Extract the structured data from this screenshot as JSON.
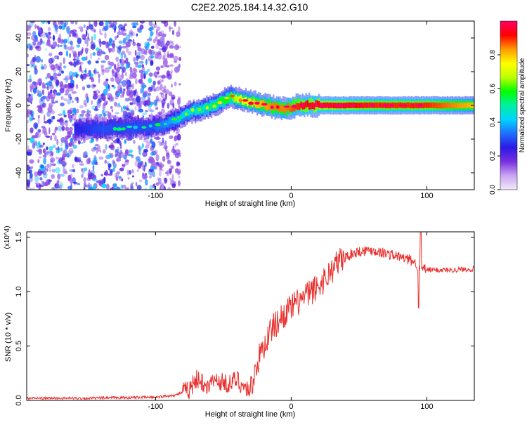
{
  "figure": {
    "title": "C2E2.2025.184.14.32.G10"
  },
  "chart_data": [
    {
      "type": "heatmap",
      "title": "C2E2.2025.184.14.32.G10",
      "xlabel": "Height of straight line (km)",
      "ylabel": "Frequency (Hz)",
      "xlim": [
        -195,
        135
      ],
      "ylim": [
        -50,
        50
      ],
      "xticks": [
        -100,
        0,
        100
      ],
      "yticks": [
        -40,
        -20,
        0,
        20,
        40
      ],
      "colorbar": {
        "label": "Normalized spectral amplitude",
        "range": [
          0,
          1
        ],
        "ticks": [
          0.0,
          0.2,
          0.4,
          0.6,
          0.8
        ],
        "colors": [
          "#f2e9fb",
          "#c9a6f2",
          "#7a2fe0",
          "#2b1ae6",
          "#1e6fff",
          "#00d5ff",
          "#00f0a0",
          "#00ff00",
          "#bfff00",
          "#ffff00",
          "#ff9900",
          "#ff0000",
          "#ff0066"
        ]
      },
      "ridge": {
        "x": [
          -160,
          -140,
          -120,
          -105,
          -95,
          -85,
          -75,
          -65,
          -55,
          -45,
          -40,
          -35,
          -25,
          -15,
          -5,
          5,
          20,
          60,
          100,
          135
        ],
        "y": [
          -14,
          -14,
          -13,
          -13,
          -12,
          -8,
          -4,
          -2,
          1,
          5,
          4,
          3,
          1,
          -1,
          -2,
          0,
          0,
          0,
          0,
          0
        ],
        "amplitude": [
          0.25,
          0.3,
          0.3,
          0.3,
          0.35,
          0.4,
          0.45,
          0.5,
          0.55,
          0.6,
          0.7,
          0.75,
          0.8,
          0.85,
          0.85,
          0.9,
          0.95,
          0.9,
          0.9,
          0.8
        ]
      },
      "noise_region_x": [
        -195,
        -90
      ]
    },
    {
      "type": "line",
      "title": "",
      "xlabel": "Height of straight line (km)",
      "ylabel": "SNR (10 * v/v)",
      "y_multiplier": "(x10^4)",
      "xlim": [
        -195,
        135
      ],
      "ylim": [
        0,
        1.55
      ],
      "xticks": [
        -100,
        0,
        100
      ],
      "yticks": [
        0.0,
        0.5,
        1.0,
        1.5
      ],
      "color": "#e8302e",
      "series": [
        {
          "x": [
            -195,
            -150,
            -100,
            -85,
            -75,
            -70,
            -62,
            -55,
            -45,
            -40,
            -35,
            -30,
            -25,
            -20,
            -15,
            -10,
            -5,
            0,
            5,
            10,
            15,
            20,
            25,
            30,
            35,
            40,
            45,
            50,
            55,
            60,
            70,
            80,
            90,
            95,
            100,
            110,
            120,
            135
          ],
          "y": [
            0.02,
            0.02,
            0.03,
            0.05,
            0.1,
            0.2,
            0.15,
            0.18,
            0.15,
            0.2,
            0.12,
            0.1,
            0.35,
            0.5,
            0.65,
            0.72,
            0.8,
            0.85,
            0.9,
            0.95,
            1.0,
            1.05,
            1.12,
            1.2,
            1.28,
            1.32,
            1.35,
            1.37,
            1.38,
            1.38,
            1.35,
            1.32,
            1.28,
            1.22,
            1.2,
            1.2,
            1.2,
            1.21
          ]
        }
      ]
    }
  ]
}
